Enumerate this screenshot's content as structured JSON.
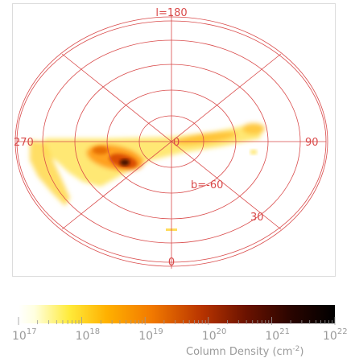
{
  "map": {
    "labels": {
      "l_top": "l=180",
      "l_left": "270",
      "l_right": "90",
      "l_center": "0",
      "l_bottom": "0",
      "b_ring": "b=-60",
      "b_ring2": "30"
    },
    "grid_color": "#d94a4a"
  },
  "colorbar": {
    "ticks": [
      {
        "base": "10",
        "exp": "17"
      },
      {
        "base": "10",
        "exp": "18"
      },
      {
        "base": "10",
        "exp": "19"
      },
      {
        "base": "10",
        "exp": "20"
      },
      {
        "base": "10",
        "exp": "21"
      },
      {
        "base": "10",
        "exp": "22"
      }
    ],
    "label_text": "Column Density (cm",
    "label_exp": "-2",
    "label_close": ")",
    "scale": "log",
    "range": [
      17,
      22
    ],
    "colors": [
      "#ffffe0",
      "#ffe600",
      "#ffa000",
      "#e05000",
      "#8a1a00",
      "#000000"
    ]
  }
}
